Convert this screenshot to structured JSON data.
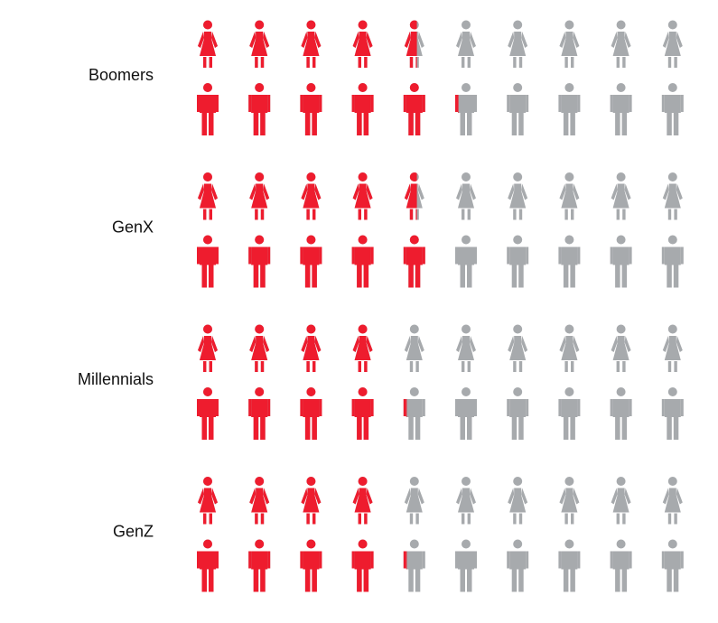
{
  "chart_data": {
    "type": "pictogram",
    "title": "",
    "icons_per_row": 10,
    "rows_per_group": [
      "female",
      "male"
    ],
    "groups": [
      {
        "label": "Boomers",
        "female": 4.6,
        "male": 5.2
      },
      {
        "label": "GenX",
        "female": 4.6,
        "male": 5.0
      },
      {
        "label": "Millennials",
        "female": 4.0,
        "male": 4.2
      },
      {
        "label": "GenZ",
        "female": 4.0,
        "male": 4.2
      }
    ],
    "colors": {
      "filled": "#ee1c2e",
      "empty": "#a7aaad"
    },
    "icons": {
      "female": "woman-icon",
      "male": "man-icon"
    }
  }
}
